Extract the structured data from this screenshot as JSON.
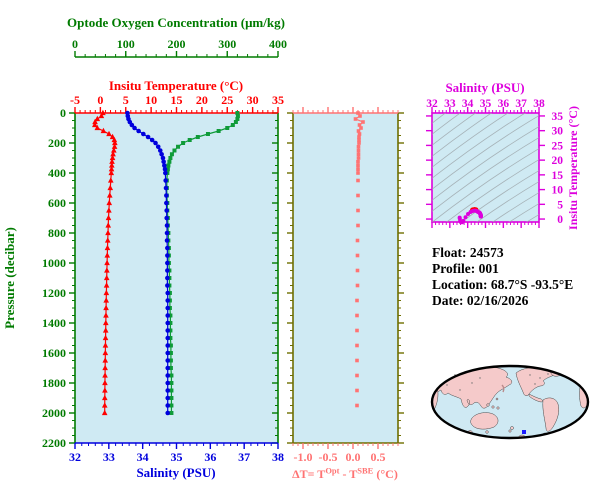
{
  "colors": {
    "axis_green": "#007b00",
    "curve_green": "#0f9b38",
    "red": "#ff0000",
    "blue": "#0000dd",
    "magenta": "#dd00dd",
    "salmon": "#ff7373",
    "olive": "#6e6e00",
    "plot_bg": "#cfeaf3",
    "contour_gray": "#9fa8ad",
    "map_land": "#f5caca",
    "map_ocean": "#cfe9f3",
    "map_outline": "#000000",
    "float_marker_blue": "#1a1aff",
    "text_black": "#000000"
  },
  "figure": {
    "info": {
      "float": "Float:  24573",
      "profile": "Profile:  001",
      "location": "Location:  68.7°S  -93.5°E",
      "date": "Date:  02/16/2026"
    }
  },
  "chart_data": [
    {
      "id": "profile-plot",
      "type": "line",
      "ylabel": "Pressure (decibar)",
      "ylim": [
        0,
        2200
      ],
      "y_ticks": [
        "0",
        "200",
        "400",
        "600",
        "800",
        "1000",
        "1200",
        "1400",
        "1600",
        "1800",
        "2000",
        "2200"
      ],
      "y_minor_step": 50,
      "grid": false,
      "legend": "none",
      "pressures": [
        0,
        20,
        40,
        60,
        80,
        100,
        120,
        140,
        160,
        180,
        200,
        225,
        250,
        275,
        300,
        325,
        350,
        375,
        400,
        450,
        500,
        550,
        600,
        650,
        700,
        750,
        800,
        850,
        900,
        950,
        1000,
        1050,
        1100,
        1150,
        1200,
        1250,
        1300,
        1350,
        1400,
        1450,
        1500,
        1550,
        1600,
        1650,
        1700,
        1750,
        1800,
        1850,
        1900,
        1950,
        2000
      ],
      "series": [
        {
          "name": "Insitu Temperature (°C)",
          "axis": "top",
          "color_key": "red",
          "marker": "triangle",
          "xlim": [
            -5,
            35
          ],
          "x_ticks": [
            "-5",
            "0",
            "5",
            "10",
            "15",
            "20",
            "25",
            "30",
            "35"
          ],
          "x_minor_step": 1,
          "values": [
            0.5,
            0.2,
            -0.6,
            -1.05,
            -1.1,
            -0.6,
            0.6,
            1.7,
            2.4,
            2.75,
            2.85,
            2.8,
            2.65,
            2.5,
            2.4,
            2.3,
            2.25,
            2.2,
            2.15,
            2.05,
            1.95,
            1.85,
            1.75,
            1.68,
            1.6,
            1.55,
            1.5,
            1.45,
            1.4,
            1.36,
            1.32,
            1.28,
            1.25,
            1.22,
            1.18,
            1.15,
            1.12,
            1.1,
            1.07,
            1.05,
            1.02,
            1.0,
            0.98,
            0.96,
            0.94,
            0.92,
            0.9,
            0.89,
            0.87,
            0.86,
            0.85
          ]
        },
        {
          "name": "Salinity (PSU)",
          "axis": "bottom",
          "color_key": "blue",
          "marker": "circle",
          "xlim": [
            32,
            38
          ],
          "x_ticks": [
            "32",
            "33",
            "34",
            "35",
            "36",
            "37",
            "38"
          ],
          "x_minor_step": 0.2,
          "values": [
            33.55,
            33.56,
            33.58,
            33.62,
            33.68,
            33.76,
            33.88,
            34.02,
            34.16,
            34.28,
            34.38,
            34.46,
            34.52,
            34.56,
            34.6,
            34.62,
            34.64,
            34.66,
            34.67,
            34.68,
            34.69,
            34.7,
            34.7,
            34.71,
            34.71,
            34.72,
            34.72,
            34.72,
            34.73,
            34.73,
            34.73,
            34.73,
            34.73,
            34.73,
            34.74,
            34.74,
            34.74,
            34.74,
            34.74,
            34.74,
            34.74,
            34.74,
            34.74,
            34.74,
            34.74,
            34.74,
            34.74,
            34.74,
            34.74,
            34.74,
            34.74
          ]
        },
        {
          "name": "Optode Oxygen Concentration (μm/kg)",
          "axis": "top-offset",
          "color_key": "curve_green",
          "marker": "square",
          "xlim": [
            0,
            400
          ],
          "x_ticks": [
            "0",
            "100",
            "200",
            "300",
            "400"
          ],
          "x_minor_step": 20,
          "values": [
            320,
            321,
            320,
            317,
            311,
            300,
            283,
            262,
            242,
            226,
            213,
            203,
            196,
            191,
            188,
            186,
            184,
            183,
            182,
            181,
            181,
            181,
            182,
            182,
            183,
            183,
            184,
            184,
            185,
            185,
            185,
            186,
            186,
            186,
            187,
            187,
            187,
            188,
            188,
            188,
            188,
            189,
            189,
            189,
            189,
            190,
            190,
            190,
            190,
            190,
            190
          ]
        }
      ]
    },
    {
      "id": "delta-t-plot",
      "type": "line",
      "xlabel_parts": [
        "ΔT= T",
        "Opt",
        " - T",
        "SBE",
        " (°C)"
      ],
      "xlim": [
        -1.2,
        0.9
      ],
      "x_ticks": [
        "-1.0",
        "-0.5",
        "0.0",
        "0.5"
      ],
      "x_minor_step": 0.1,
      "ylim": [
        0,
        2200
      ],
      "uses_pressures_of": "profile-plot",
      "color_key": "salmon",
      "marker": "square",
      "values": [
        0.1,
        0.14,
        0.05,
        0.2,
        0.13,
        0.16,
        0.11,
        0.13,
        0.12,
        0.12,
        0.12,
        0.11,
        0.11,
        0.11,
        0.11,
        0.1,
        0.1,
        0.1,
        0.1,
        0.1,
        0.1,
        0.1,
        0.1,
        0.1,
        0.1,
        0.1,
        0.09,
        0.09,
        0.09,
        0.09,
        0.09,
        0.09,
        0.09,
        0.09,
        0.09,
        0.08,
        0.08,
        0.08,
        0.08,
        0.08,
        0.08,
        0.08,
        0.08,
        0.08,
        0.08,
        0.08,
        0.08,
        0.08,
        0.08,
        0.08,
        0.08
      ]
    },
    {
      "id": "ts-plot",
      "type": "scatter",
      "xlabel": "Salinity (PSU)",
      "xlim": [
        32,
        38
      ],
      "x_ticks": [
        "32",
        "33",
        "34",
        "35",
        "36",
        "37",
        "38"
      ],
      "x_minor_step": 0.2,
      "ylabel": "Insitu Temperature (°C)",
      "ylim": [
        -1,
        36
      ],
      "y_ticks": [
        "0",
        "5",
        "10",
        "15",
        "20",
        "25",
        "30",
        "35"
      ],
      "y_minor_step": 1,
      "points_note": "salinity vs temperature pairs of the profile data (same indices as profile-plot series)",
      "color_key": "magenta",
      "contours": {
        "style": "isopycnal background curves",
        "color_key": "contour_gray"
      }
    }
  ]
}
